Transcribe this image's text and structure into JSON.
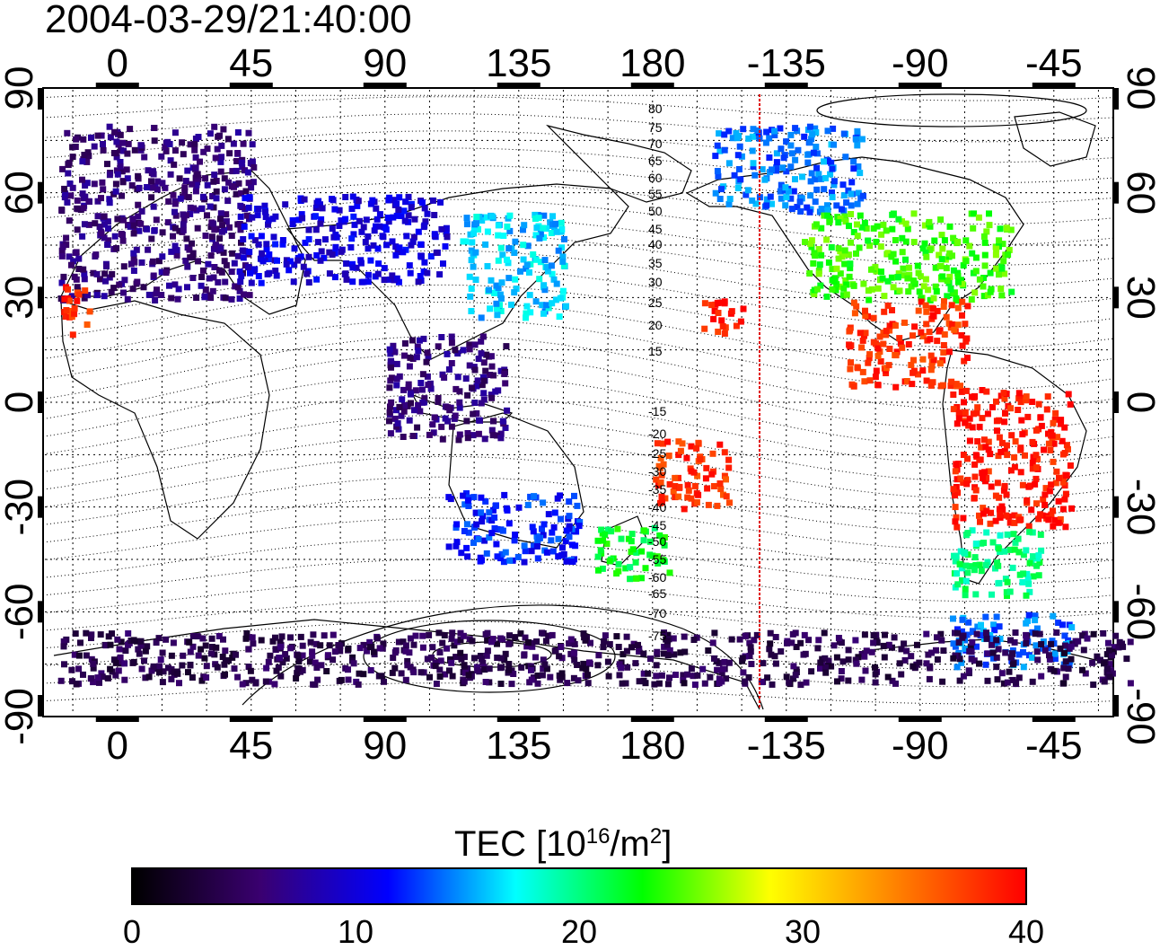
{
  "title": "2004-03-29/21:40:00",
  "map": {
    "x_ticks": [
      "0",
      "45",
      "90",
      "135",
      "180",
      "-135",
      "-90",
      "-45"
    ],
    "x_tick_lons": [
      0,
      45,
      90,
      135,
      180,
      225,
      270,
      315
    ],
    "y_ticks": [
      "90",
      "60",
      "30",
      "0",
      "-30",
      "-60",
      "-90"
    ],
    "y_tick_lats": [
      90,
      60,
      30,
      0,
      -30,
      -60,
      -90
    ],
    "lon_range": [
      -25,
      335
    ],
    "lat_range": [
      -90,
      90
    ],
    "grid": true,
    "terminator_lon": 210,
    "terminator_color": "#e00000",
    "contour_labels": [
      "80",
      "75",
      "70",
      "65",
      "60",
      "55",
      "50",
      "45",
      "40",
      "35",
      "30",
      "25",
      "20",
      "15",
      "-15",
      "-20",
      "-25",
      "-30",
      "-35",
      "-40",
      "-45",
      "-50",
      "-55",
      "-60",
      "-65",
      "-70",
      "-75"
    ]
  },
  "colorbar": {
    "title": "TEC  [10",
    "title_sup1": "16",
    "title_mid": "/m",
    "title_sup2": "2",
    "title_end": "]",
    "ticks": [
      "0",
      "10",
      "20",
      "30",
      "40"
    ],
    "tick_values": [
      0,
      10,
      20,
      30,
      40
    ],
    "range": [
      0,
      40
    ],
    "colormap": [
      "#000000",
      "#3a0070",
      "#0000ff",
      "#00ffff",
      "#00ff00",
      "#ffff00",
      "#ff8000",
      "#ff0000"
    ]
  },
  "chart_data": {
    "type": "heatmap",
    "title": "2004-03-29/21:40:00",
    "xlabel": "",
    "ylabel": "",
    "colorbar_label": "TEC [10^16/m^2]",
    "xlim": [
      -25,
      335
    ],
    "ylim": [
      -90,
      90
    ],
    "value_range": [
      0,
      40
    ],
    "regions": [
      {
        "lon": [
          -20,
          45
        ],
        "lat": [
          30,
          80
        ],
        "tec": 6
      },
      {
        "lon": [
          40,
          110
        ],
        "lat": [
          35,
          60
        ],
        "tec": 10
      },
      {
        "lon": [
          115,
          150
        ],
        "lat": [
          25,
          55
        ],
        "tec": 16
      },
      {
        "lon": [
          200,
          250
        ],
        "lat": [
          55,
          80
        ],
        "tec": 14
      },
      {
        "lon": [
          230,
          300
        ],
        "lat": [
          30,
          55
        ],
        "tec": 24
      },
      {
        "lon": [
          245,
          285
        ],
        "lat": [
          5,
          30
        ],
        "tec": 38
      },
      {
        "lon": [
          280,
          320
        ],
        "lat": [
          -35,
          5
        ],
        "tec": 39
      },
      {
        "lon": [
          280,
          310
        ],
        "lat": [
          -55,
          -35
        ],
        "tec": 20
      },
      {
        "lon": [
          280,
          320
        ],
        "lat": [
          -75,
          -60
        ],
        "tec": 14
      },
      {
        "lon": [
          180,
          205
        ],
        "lat": [
          -30,
          -10
        ],
        "tec": 38
      },
      {
        "lon": [
          195,
          210
        ],
        "lat": [
          20,
          30
        ],
        "tec": 39
      },
      {
        "lon": [
          160,
          185
        ],
        "lat": [
          -50,
          -35
        ],
        "tec": 22
      },
      {
        "lon": [
          110,
          155
        ],
        "lat": [
          -45,
          -25
        ],
        "tec": 12
      },
      {
        "lon": [
          -20,
          340
        ],
        "lat": [
          -80,
          -65
        ],
        "tec": 4
      },
      {
        "lon": [
          -20,
          -10
        ],
        "lat": [
          20,
          35
        ],
        "tec": 38
      },
      {
        "lon": [
          90,
          130
        ],
        "lat": [
          -10,
          20
        ],
        "tec": 6
      }
    ]
  }
}
